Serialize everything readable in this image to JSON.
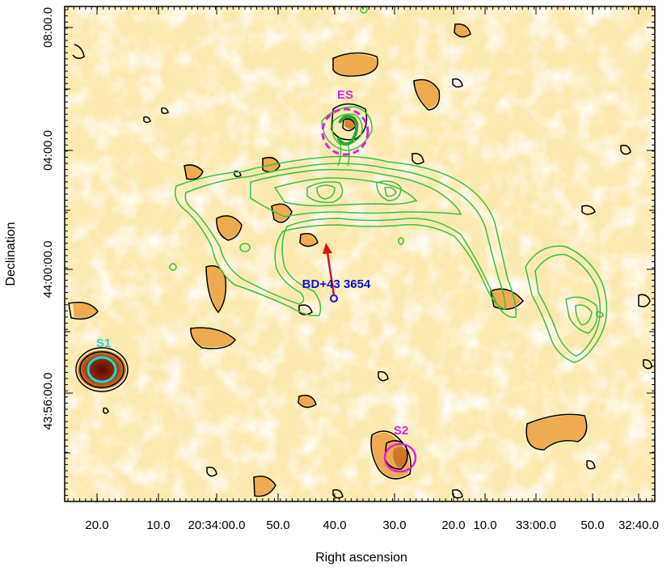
{
  "axes": {
    "xlabel": "Right ascension",
    "ylabel": "Declination",
    "x_ticks": [
      "20.0",
      "10.0",
      "20:34:00.0",
      "50.0",
      "40.0",
      "30.0",
      "20.0",
      "10.0",
      "33:00.0",
      "50.0",
      "32:40.0"
    ],
    "y_ticks": [
      "08:00.0",
      "04:00.0",
      "44:00:00.0",
      "43:56:00.0"
    ]
  },
  "labels": {
    "es": "ES",
    "s1": "S1",
    "s2": "S2",
    "star": "BD+43 3654"
  },
  "colors": {
    "background_map": "#fbeab0",
    "emission": "#e8922a",
    "radio_contour": "#3cbf3c",
    "map_contour": "#000000",
    "es_circle": "#e020e0",
    "s1_circle": "#20d8d8",
    "s2_circle": "#e020e0",
    "star": "#1010d0",
    "arrow": "#e01010"
  }
}
